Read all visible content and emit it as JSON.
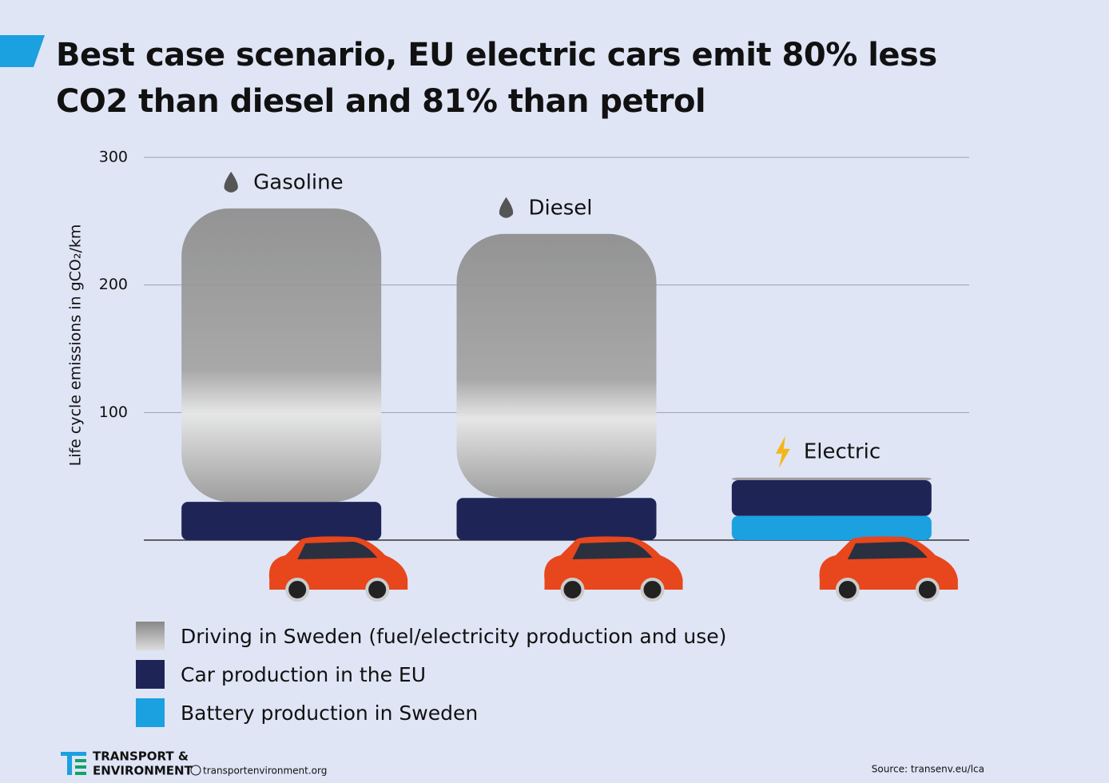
{
  "chart_data": {
    "type": "bar",
    "stacked": true,
    "title": "Best case scenario, EU electric cars emit 80% less CO2 than diesel and 81% than petrol",
    "y_label": "Life cycle emissions in gCO₂/km",
    "categories": [
      "Gasoline",
      "Diesel",
      "Electric"
    ],
    "series": [
      {
        "name": "Driving in Sweden (fuel/electricity production and use)",
        "color": "#9b9b9b",
        "values": [
          230,
          207,
          2
        ]
      },
      {
        "name": "Car production in the EU",
        "color": "#1e2556",
        "values": [
          30,
          33,
          28
        ]
      },
      {
        "name": "Battery production in Sweden",
        "color": "#1ba0e0",
        "values": [
          0,
          0,
          19
        ]
      }
    ],
    "ylim": [
      0,
      300
    ],
    "yticks": [
      100,
      200,
      300
    ],
    "grid": true
  },
  "footer": {
    "org_line1": "TRANSPORT &",
    "org_line2": "ENVIRONMENT",
    "website": "transportenvironment.org",
    "source": "Source: transenv.eu/lca"
  }
}
